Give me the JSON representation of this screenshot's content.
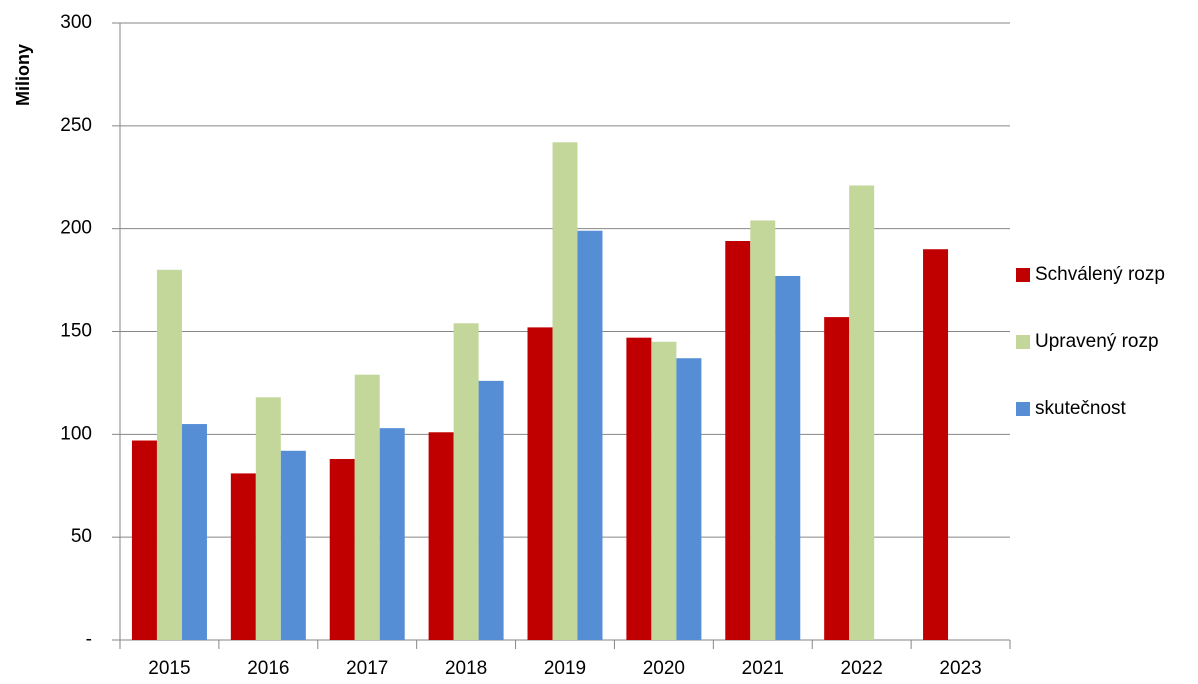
{
  "chart_data": {
    "type": "bar",
    "y_label": "Miliony",
    "categories": [
      "2015",
      "2016",
      "2017",
      "2018",
      "2019",
      "2020",
      "2021",
      "2022",
      "2023"
    ],
    "series": [
      {
        "name": "Schválený rozp",
        "color": "#c00000",
        "values": [
          97,
          81,
          88,
          101,
          152,
          147,
          194,
          157,
          190
        ]
      },
      {
        "name": "Upravený rozp",
        "color": "#c4d79b",
        "values": [
          180,
          118,
          129,
          154,
          242,
          145,
          204,
          221,
          null
        ]
      },
      {
        "name": "skutečnost",
        "color": "#558ed5",
        "values": [
          105,
          92,
          103,
          126,
          199,
          137,
          177,
          null,
          null
        ]
      }
    ],
    "ylim": [
      0,
      300
    ],
    "yticks": [
      {
        "value": 0,
        "label": "-"
      },
      50,
      100,
      150,
      200,
      250,
      300
    ],
    "grid": true,
    "legend": "right"
  }
}
